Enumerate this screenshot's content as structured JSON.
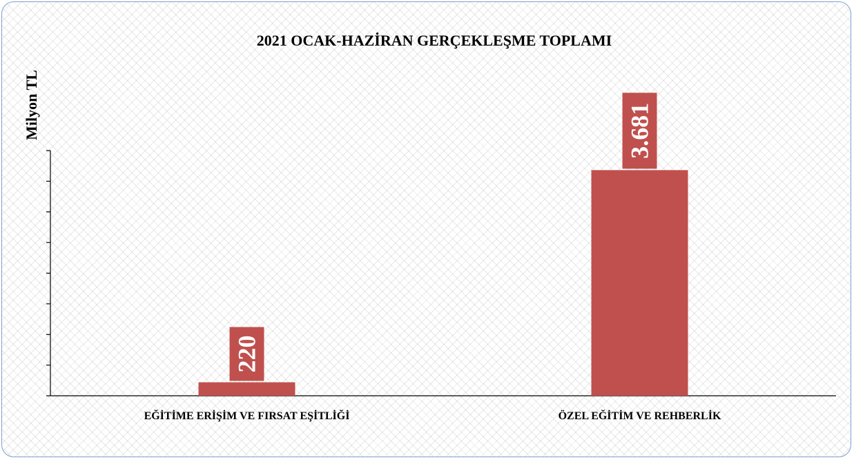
{
  "chart_data": {
    "type": "bar",
    "title": "2021 OCAK-HAZİRAN GERÇEKLEŞME TOPLAMI",
    "ylabel": "Milyon TL",
    "xlabel": "",
    "categories": [
      "EĞİTİME ERİŞİM VE FIRSAT EŞİTLİĞİ",
      "ÖZEL EĞİTİM VE REHBERLİK"
    ],
    "values": [
      220,
      3681
    ],
    "data_labels": [
      "220",
      "3.681"
    ],
    "ylim": [
      0,
      4000
    ],
    "ytick_count": 8,
    "grid": false,
    "legend": "none",
    "colors": {
      "bar": "#c0504d",
      "axis": "#000000",
      "border": "#7f9fcf"
    }
  }
}
